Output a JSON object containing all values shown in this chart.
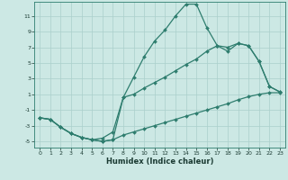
{
  "xlabel": "Humidex (Indice chaleur)",
  "background_color": "#cce8e4",
  "grid_color": "#aacfcb",
  "line_color": "#2e7d6e",
  "xlim": [
    -0.5,
    23.5
  ],
  "ylim": [
    -5.8,
    12.8
  ],
  "xticks": [
    0,
    1,
    2,
    3,
    4,
    5,
    6,
    7,
    8,
    9,
    10,
    11,
    12,
    13,
    14,
    15,
    16,
    17,
    18,
    19,
    20,
    21,
    22,
    23
  ],
  "yticks": [
    -5,
    -3,
    -1,
    1,
    3,
    5,
    7,
    9,
    11
  ],
  "line1_x": [
    0,
    1,
    2,
    3,
    4,
    5,
    6,
    7,
    8,
    9,
    10,
    11,
    12,
    13,
    14,
    15,
    16,
    17,
    18,
    19,
    20,
    21,
    22,
    23
  ],
  "line1_y": [
    -2,
    -2.2,
    -3.2,
    -4,
    -4.5,
    -4.8,
    -5,
    -4.8,
    -4.2,
    -3.8,
    -3.4,
    -3,
    -2.6,
    -2.2,
    -1.8,
    -1.4,
    -1.0,
    -0.6,
    -0.2,
    0.3,
    0.7,
    1.0,
    1.2,
    1.2
  ],
  "line2_x": [
    0,
    1,
    2,
    3,
    4,
    5,
    6,
    7,
    8,
    9,
    10,
    11,
    12,
    13,
    14,
    15,
    16,
    17,
    18,
    19,
    20,
    21,
    22,
    23
  ],
  "line2_y": [
    -2,
    -2.2,
    -3.2,
    -4,
    -4.5,
    -4.8,
    -4.6,
    -3.8,
    0.6,
    3.2,
    5.8,
    7.8,
    9.2,
    11,
    12.5,
    12.5,
    9.5,
    7.2,
    7.0,
    7.5,
    7.2,
    5.2,
    2.0,
    1.3
  ],
  "line3_x": [
    0,
    1,
    2,
    3,
    4,
    5,
    6,
    7,
    8,
    9,
    10,
    11,
    12,
    13,
    14,
    15,
    16,
    17,
    18,
    19,
    20,
    21,
    22,
    23
  ],
  "line3_y": [
    -2,
    -2.2,
    -3.2,
    -4,
    -4.5,
    -4.8,
    -5,
    -4.8,
    0.6,
    1.0,
    1.8,
    2.5,
    3.2,
    4.0,
    4.8,
    5.5,
    6.5,
    7.2,
    6.5,
    7.5,
    7.2,
    5.2,
    2.0,
    1.3
  ]
}
